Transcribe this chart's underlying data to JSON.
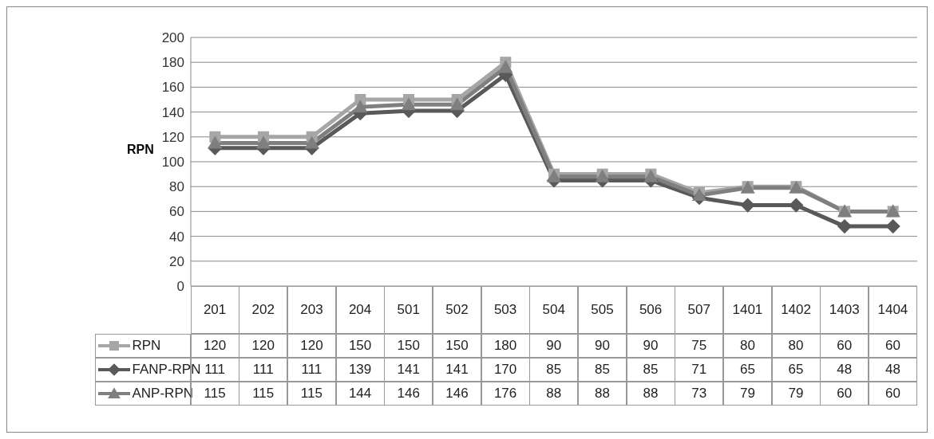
{
  "chart_data": {
    "type": "line",
    "ylabel": "RPN",
    "categories": [
      "201",
      "202",
      "203",
      "204",
      "501",
      "502",
      "503",
      "504",
      "505",
      "506",
      "507",
      "1401",
      "1402",
      "1403",
      "1404"
    ],
    "series": [
      {
        "name": "RPN",
        "color": "#a6a6a6",
        "marker": "square",
        "values": [
          120,
          120,
          120,
          150,
          150,
          150,
          180,
          90,
          90,
          90,
          75,
          80,
          80,
          60,
          60
        ]
      },
      {
        "name": "FANP-RPN",
        "color": "#595959",
        "marker": "diamond",
        "values": [
          111,
          111,
          111,
          139,
          141,
          141,
          170,
          85,
          85,
          85,
          71,
          65,
          65,
          48,
          48
        ]
      },
      {
        "name": "ANP-RPN",
        "color": "#7f7f7f",
        "marker": "triangle",
        "values": [
          115,
          115,
          115,
          144,
          146,
          146,
          176,
          88,
          88,
          88,
          73,
          79,
          79,
          60,
          60
        ]
      }
    ],
    "ylim": [
      0,
      200
    ],
    "yticks": [
      0,
      20,
      40,
      60,
      80,
      100,
      120,
      140,
      160,
      180,
      200
    ],
    "grid": "y",
    "legend": "bottom",
    "data_labels": true
  }
}
